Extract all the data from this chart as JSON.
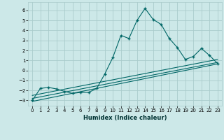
{
  "xlabel": "Humidex (Indice chaleur)",
  "bg_color": "#cce8e8",
  "grid_color": "#aacccc",
  "line_color": "#006666",
  "xlim": [
    -0.5,
    23.5
  ],
  "ylim": [
    -3.5,
    6.8
  ],
  "yticks": [
    -3,
    -2,
    -1,
    0,
    1,
    2,
    3,
    4,
    5,
    6
  ],
  "xticks": [
    0,
    1,
    2,
    3,
    4,
    5,
    6,
    7,
    8,
    9,
    10,
    11,
    12,
    13,
    14,
    15,
    16,
    17,
    18,
    19,
    20,
    21,
    22,
    23
  ],
  "main_x": [
    0,
    1,
    2,
    3,
    4,
    5,
    6,
    7,
    8,
    9,
    10,
    11,
    12,
    13,
    14,
    15,
    16,
    17,
    18,
    19,
    20,
    21,
    22,
    23
  ],
  "main_y": [
    -3.0,
    -1.8,
    -1.7,
    -1.85,
    -2.1,
    -2.3,
    -2.2,
    -2.2,
    -1.8,
    -0.35,
    1.3,
    3.5,
    3.2,
    5.0,
    6.2,
    5.1,
    4.6,
    3.2,
    2.3,
    1.1,
    1.4,
    2.2,
    1.5,
    0.7
  ],
  "line1_x": [
    0,
    23
  ],
  "line1_y": [
    -2.8,
    0.8
  ],
  "line2_x": [
    0,
    23
  ],
  "line2_y": [
    -3.1,
    0.65
  ],
  "line3_x": [
    0,
    23
  ],
  "line3_y": [
    -2.5,
    1.1
  ]
}
